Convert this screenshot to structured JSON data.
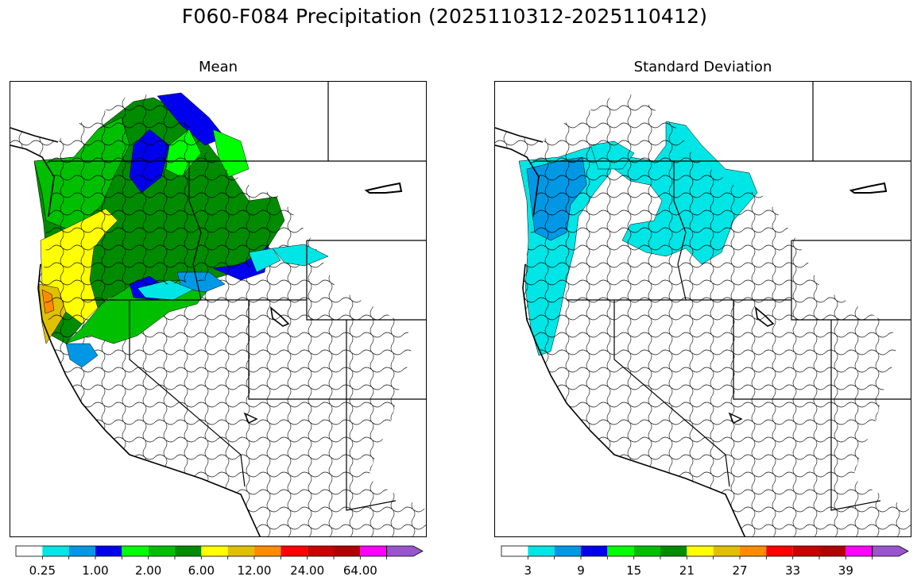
{
  "title": "F060-F084 Precipitation (2025110312-2025110412)",
  "panels": [
    {
      "id": "mean",
      "title": "Mean"
    },
    {
      "id": "std",
      "title": "Standard Deviation"
    }
  ],
  "colorbars": {
    "mean": {
      "colors": [
        "#ffffff",
        "#00e5e5",
        "#0098e5",
        "#0000ee",
        "#00ff00",
        "#00bf00",
        "#008b00",
        "#ffff00",
        "#e0c000",
        "#ff8c00",
        "#ff0000",
        "#cc0000",
        "#b30000",
        "#ff00ff",
        "#9955cc"
      ],
      "labels": [
        "0.25",
        "1.00",
        "2.00",
        "6.00",
        "12.00",
        "24.00",
        "64.00"
      ],
      "label_after_color": [
        0,
        2,
        4,
        6,
        8,
        10,
        12
      ]
    },
    "std": {
      "colors": [
        "#ffffff",
        "#00e5e5",
        "#0098e5",
        "#0000ee",
        "#00ff00",
        "#00bf00",
        "#008b00",
        "#ffff00",
        "#e0c000",
        "#ff8c00",
        "#ff0000",
        "#cc0000",
        "#b30000",
        "#ff00ff",
        "#9955cc"
      ],
      "labels": [
        "3",
        "9",
        "15",
        "21",
        "27",
        "33",
        "39"
      ],
      "label_after_color": [
        0,
        2,
        4,
        6,
        8,
        10,
        12
      ]
    }
  },
  "map_colors": {
    "mean": {
      "wa_coast": "#00bf00",
      "wa_interior": "#008b00",
      "idaho_panhandle": "#00bf00",
      "idaho_blue": "#0000ee",
      "bright_green": "#00ff00",
      "or_coast": "#ffff00",
      "or_coast_dark": "#e0c000",
      "ca_coast_orange": "#ff8c00",
      "snake_blue": "#0098e5",
      "snake_cyan": "#00e5e5"
    },
    "std": {
      "coast": "#00e5e5",
      "coast_blue": "#0098e5",
      "interior_cyan": "#00e5e5"
    }
  }
}
